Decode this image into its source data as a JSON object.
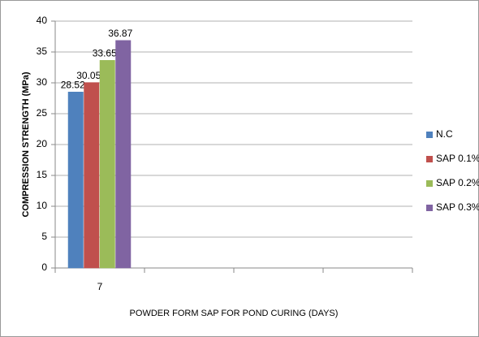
{
  "chart_data": {
    "type": "bar",
    "x_label": "POWDER FORM SAP FOR POND CURING (DAYS)",
    "y_label": "COMPRESSION STRENGTH (MPa)",
    "categories": [
      "7",
      null,
      null,
      null
    ],
    "series": [
      {
        "name": "N.C",
        "color": "#4f81bd",
        "values": [
          28.52,
          null,
          null,
          null
        ]
      },
      {
        "name": "SAP 0.1%",
        "color": "#c0504d",
        "values": [
          30.05,
          null,
          null,
          null
        ]
      },
      {
        "name": "SAP 0.2%",
        "color": "#9bbb59",
        "values": [
          33.65,
          null,
          null,
          null
        ]
      },
      {
        "name": "SAP 0.3%",
        "color": "#8064a2",
        "values": [
          36.87,
          null,
          null,
          null
        ]
      }
    ],
    "ylim": [
      0,
      40
    ],
    "yticks": [
      0,
      5,
      10,
      15,
      20,
      25,
      30,
      35,
      40
    ],
    "grid": true,
    "legend": "right"
  }
}
